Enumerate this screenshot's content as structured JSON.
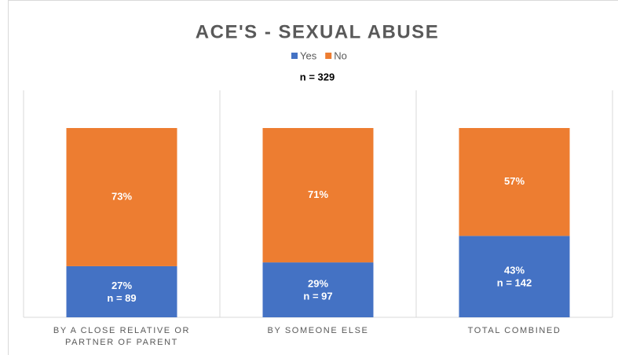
{
  "chart_data": {
    "type": "stacked_bar_100",
    "title": "ACE'S - SEXUAL ABUSE",
    "annotation": "n = 329",
    "categories": [
      "BY A CLOSE RELATIVE OR PARTNER OF PARENT",
      "BY SOMEONE ELSE",
      "TOTAL COMBINED"
    ],
    "series": [
      {
        "name": "Yes",
        "color": "#4472c4",
        "values": [
          27,
          29,
          43
        ],
        "value_labels": [
          "27%",
          "29%",
          "43%"
        ],
        "sublabels": [
          "n = 89",
          "n = 97",
          "n = 142"
        ]
      },
      {
        "name": "No",
        "color": "#ed7d31",
        "values": [
          73,
          71,
          57
        ],
        "value_labels": [
          "73%",
          "71%",
          "57%"
        ]
      }
    ],
    "legend": "top"
  }
}
